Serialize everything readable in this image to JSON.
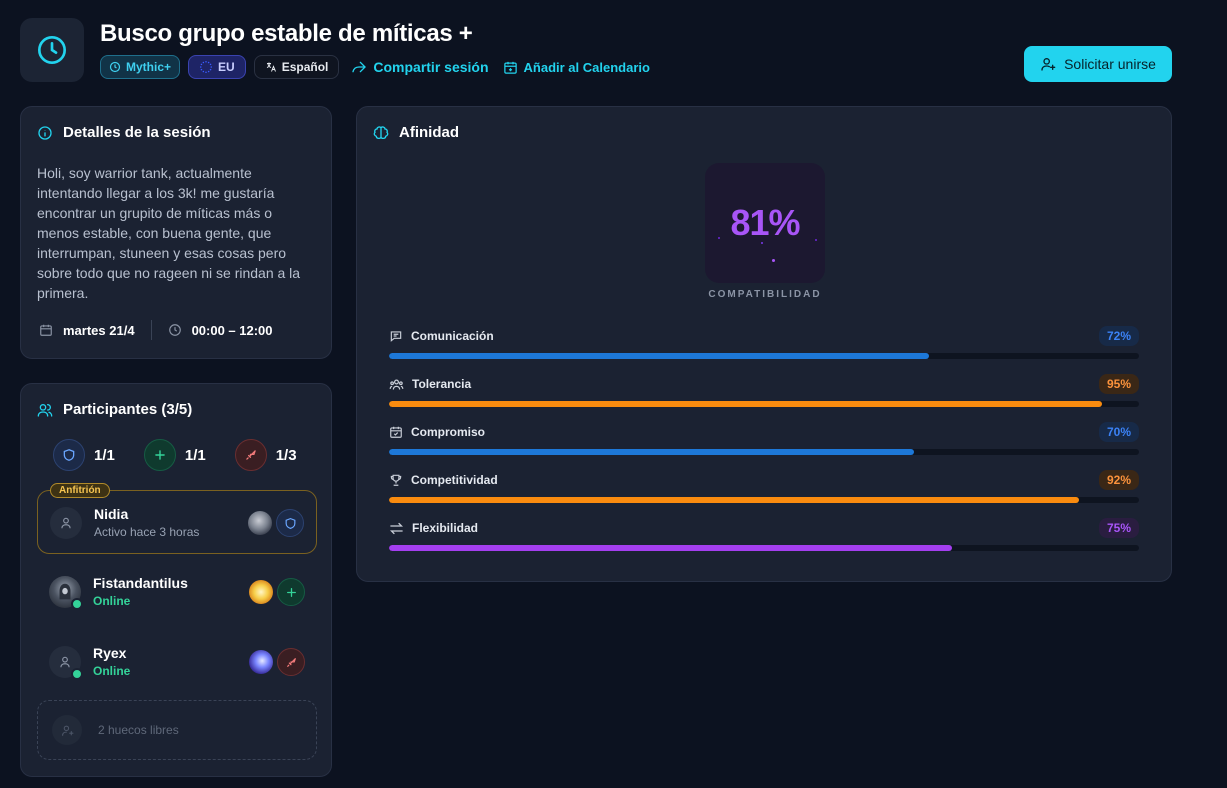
{
  "header": {
    "title": "Busco grupo estable de míticas +",
    "tags": {
      "mythic": "Mythic+",
      "region": "EU",
      "language": "Español"
    },
    "share_label": "Compartir sesión",
    "calendar_label": "Añadir al Calendario",
    "join_label": "Solicitar unirse"
  },
  "details": {
    "title": "Detalles de la sesión",
    "description": "Holi, soy warrior tank, actualmente intentando llegar a los 3k! me gustaría encontrar un grupito de míticas más o menos estable, con buena gente, que interrumpan, stuneen y esas cosas pero sobre todo que no rageen ni se rindan a la primera.",
    "date": "martes 21/4",
    "time": "00:00 – 12:00"
  },
  "participants": {
    "title": "Participantes (3/5)",
    "roles": {
      "tank": "1/1",
      "healer": "1/1",
      "dps": "1/3"
    },
    "host_badge": "Anfitrión",
    "members": [
      {
        "name": "Nidia",
        "status": "Activo hace 3 horas",
        "role": "tank",
        "spec_icon": "shield-spec-icon"
      },
      {
        "name": "Fistandantilus",
        "status": "Online",
        "role": "healer",
        "spec_icon": "holy-light-spec-icon"
      },
      {
        "name": "Ryex",
        "status": "Online",
        "role": "dps",
        "spec_icon": "arcane-spec-icon"
      }
    ],
    "empty_slots": "2 huecos libres"
  },
  "affinity": {
    "title": "Afinidad",
    "compat_value": "81%",
    "compat_label": "COMPATIBILIDAD",
    "metrics": [
      {
        "label": "Comunicación",
        "percent": "72%",
        "value": 72,
        "color": "#1d78d8",
        "icon": "message-icon"
      },
      {
        "label": "Tolerancia",
        "percent": "95%",
        "value": 95,
        "color": "#f98b0f",
        "icon": "users-icon"
      },
      {
        "label": "Compromiso",
        "percent": "70%",
        "value": 70,
        "color": "#1d78d8",
        "icon": "calendar-check-icon"
      },
      {
        "label": "Competitividad",
        "percent": "92%",
        "value": 92,
        "color": "#f98b0f",
        "icon": "trophy-icon"
      },
      {
        "label": "Flexibilidad",
        "percent": "75%",
        "value": 75,
        "color": "#a43ff0",
        "icon": "swap-icon"
      }
    ]
  },
  "colors": {
    "accent": "#22d3ee",
    "online": "#34d399",
    "purple": "#a855f7",
    "host_gold": "#f5c451"
  }
}
